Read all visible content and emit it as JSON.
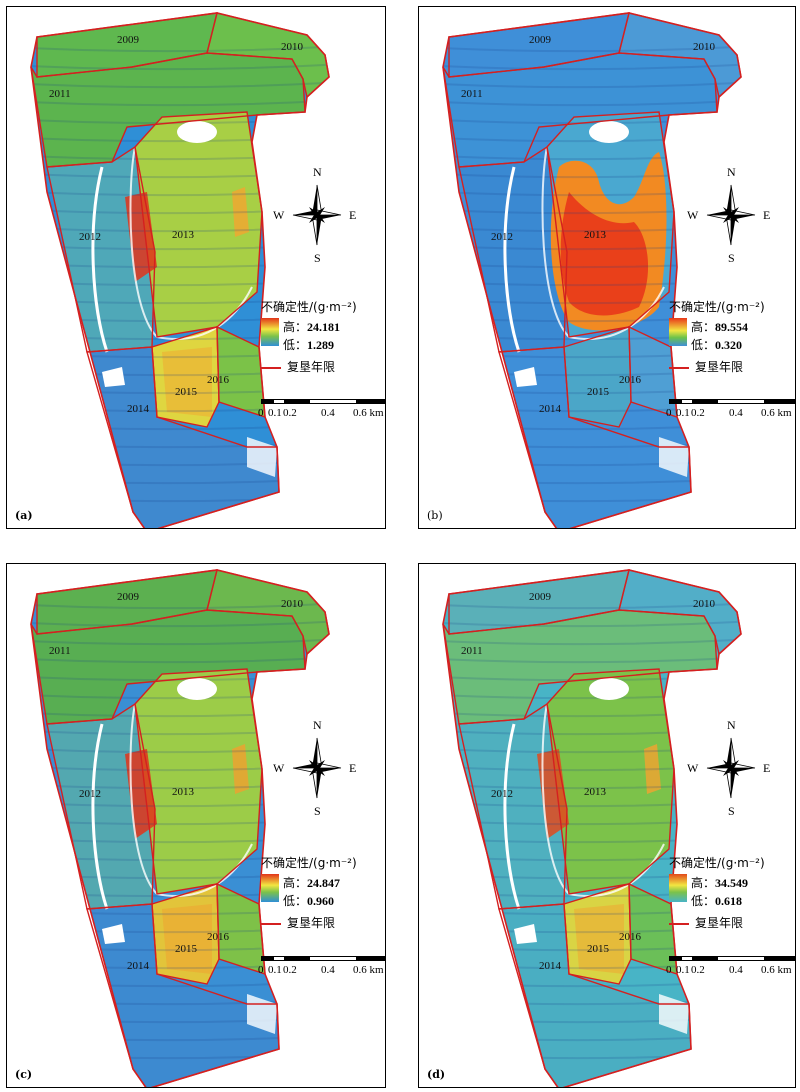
{
  "panels": [
    {
      "id": "a",
      "label": "(a)",
      "label_bold": true,
      "high": "24.181",
      "low": "1.289",
      "palette": "rainbow-a"
    },
    {
      "id": "b",
      "label": "(b)",
      "label_bold": false,
      "high": "89.554",
      "low": "0.320",
      "palette": "blue-b"
    },
    {
      "id": "c",
      "label": "(c)",
      "label_bold": true,
      "high": "24.847",
      "low": "0.960",
      "palette": "rainbow-c"
    },
    {
      "id": "d",
      "label": "(d)",
      "label_bold": true,
      "high": "34.549",
      "low": "0.618",
      "palette": "teal-d"
    }
  ],
  "years": [
    "2009",
    "2010",
    "2011",
    "2012",
    "2013",
    "2014",
    "2015",
    "2016"
  ],
  "legend": {
    "title": "不确定性/(g·m⁻²)",
    "high_label": "高：",
    "low_label": "低：",
    "boundary_label": "复垦年限"
  },
  "compass": {
    "n": "N",
    "s": "S",
    "e": "E",
    "w": "W"
  },
  "scalebar": {
    "ticks": [
      "0",
      "0.1",
      "0.2",
      "0.4",
      "0.6 km"
    ]
  },
  "colors": {
    "boundary": "#d42020",
    "low_blue": "#2f6fd6",
    "mid_cyan": "#3cb8d8",
    "green": "#7cc24a",
    "yellow": "#f2e641",
    "red": "#e8371a"
  }
}
